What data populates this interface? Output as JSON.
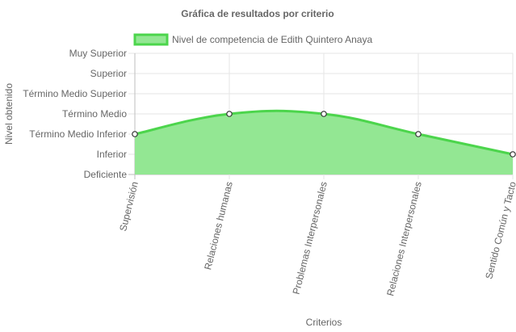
{
  "chart_data": {
    "type": "area",
    "title": "Gráfica de resultados por criterio",
    "xlabel": "Criterios",
    "ylabel": "Nivel obtenido",
    "categories": [
      "Supervisión",
      "Relaciones humanas",
      "Problemas Interpersonales",
      "Relaciones Interpersonales",
      "Sentido Común y Tacto"
    ],
    "y_levels": [
      "Deficiente",
      "Inferior",
      "Término Medio Inferior",
      "Término Medio",
      "Término Medio Superior",
      "Superior",
      "Muy Superior"
    ],
    "series": [
      {
        "name": "Nivel de competencia de Edith Quintero Anaya",
        "values": [
          2,
          3,
          3,
          2,
          1
        ],
        "line_color": "#4cd54c",
        "fill_color": "#93e793"
      }
    ],
    "grid": true,
    "legend_position": "top"
  }
}
